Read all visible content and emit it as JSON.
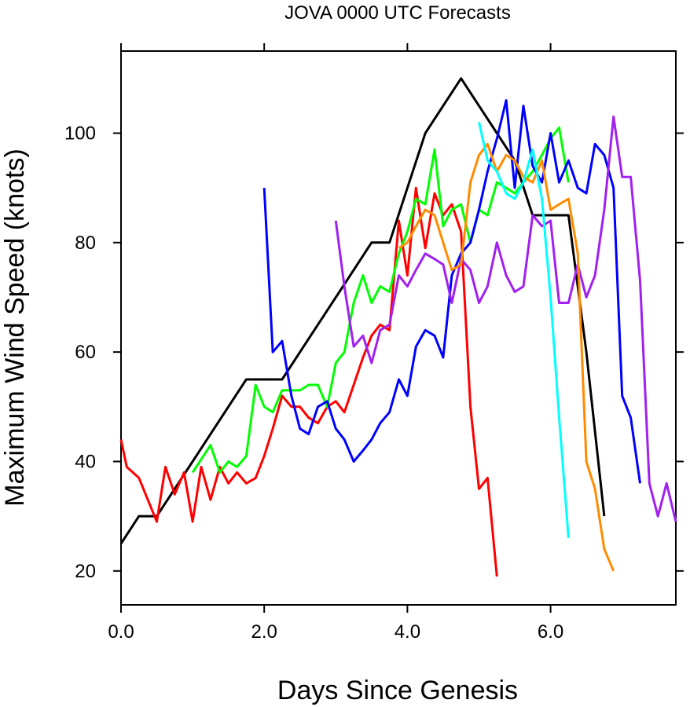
{
  "chart_data": {
    "type": "line",
    "title": "JOVA 0000 UTC Forecasts",
    "xlabel": "Days Since Genesis",
    "ylabel": "Maximum Wind Speed (knots)",
    "xlim": [
      0,
      7.75
    ],
    "ylim": [
      13.8,
      115
    ],
    "x_ticks": [
      0,
      2,
      4,
      6
    ],
    "x_tick_labels": [
      "0.0",
      "2.0",
      "4.0",
      "6.0"
    ],
    "y_ticks": [
      20,
      40,
      60,
      80,
      100
    ],
    "y_tick_labels": [
      "20",
      "40",
      "60",
      "80",
      "100"
    ],
    "grid": false,
    "legend": "none",
    "series": [
      {
        "color": "#000000",
        "points": [
          [
            0,
            25
          ],
          [
            0.25,
            30
          ],
          [
            0.5,
            30
          ],
          [
            0.75,
            35
          ],
          [
            1,
            40
          ],
          [
            1.25,
            45
          ],
          [
            1.5,
            50
          ],
          [
            1.75,
            55
          ],
          [
            2,
            55
          ],
          [
            2.25,
            55
          ],
          [
            2.5,
            60
          ],
          [
            2.75,
            65
          ],
          [
            3,
            70
          ],
          [
            3.25,
            75
          ],
          [
            3.5,
            80
          ],
          [
            3.75,
            80
          ],
          [
            4,
            90
          ],
          [
            4.25,
            100
          ],
          [
            4.5,
            105
          ],
          [
            4.75,
            110
          ],
          [
            5,
            105
          ],
          [
            5.25,
            100
          ],
          [
            5.5,
            95
          ],
          [
            5.75,
            85
          ],
          [
            6,
            85
          ],
          [
            6.25,
            85
          ],
          [
            6.5,
            60
          ],
          [
            6.75,
            30
          ]
        ]
      },
      {
        "color": "#ff0000",
        "points": [
          [
            0,
            44
          ],
          [
            0.08,
            39
          ],
          [
            0.25,
            37
          ],
          [
            0.5,
            29
          ],
          [
            0.62,
            39
          ],
          [
            0.75,
            34
          ],
          [
            0.88,
            38
          ],
          [
            1,
            29
          ],
          [
            1.12,
            39
          ],
          [
            1.25,
            33
          ],
          [
            1.38,
            39
          ],
          [
            1.5,
            36
          ],
          [
            1.62,
            38
          ],
          [
            1.75,
            36
          ],
          [
            1.88,
            37
          ],
          [
            2,
            41
          ],
          [
            2.12,
            46
          ],
          [
            2.25,
            52
          ],
          [
            2.38,
            50
          ],
          [
            2.5,
            50
          ],
          [
            2.62,
            48
          ],
          [
            2.75,
            47
          ],
          [
            2.88,
            50
          ],
          [
            3,
            51
          ],
          [
            3.12,
            49
          ],
          [
            3.25,
            54
          ],
          [
            3.38,
            59
          ],
          [
            3.5,
            63
          ],
          [
            3.62,
            65
          ],
          [
            3.75,
            64
          ],
          [
            3.88,
            84
          ],
          [
            4,
            74
          ],
          [
            4.12,
            90
          ],
          [
            4.25,
            79
          ],
          [
            4.38,
            89
          ],
          [
            4.5,
            85
          ],
          [
            4.62,
            87
          ],
          [
            4.75,
            82
          ],
          [
            4.88,
            50
          ],
          [
            5,
            35
          ],
          [
            5.12,
            37
          ],
          [
            5.25,
            19
          ]
        ]
      },
      {
        "color": "#00ff00",
        "points": [
          [
            1,
            38
          ],
          [
            1.25,
            43
          ],
          [
            1.38,
            38
          ],
          [
            1.5,
            40
          ],
          [
            1.62,
            39
          ],
          [
            1.75,
            41
          ],
          [
            1.88,
            54
          ],
          [
            2,
            50
          ],
          [
            2.12,
            49
          ],
          [
            2.25,
            53
          ],
          [
            2.38,
            53
          ],
          [
            2.5,
            53
          ],
          [
            2.62,
            54
          ],
          [
            2.75,
            54
          ],
          [
            2.88,
            50
          ],
          [
            3,
            58
          ],
          [
            3.12,
            60
          ],
          [
            3.25,
            69
          ],
          [
            3.38,
            74
          ],
          [
            3.5,
            69
          ],
          [
            3.62,
            72
          ],
          [
            3.75,
            71
          ],
          [
            3.88,
            78
          ],
          [
            4,
            82
          ],
          [
            4.12,
            88
          ],
          [
            4.25,
            87
          ],
          [
            4.38,
            97
          ],
          [
            4.5,
            83
          ],
          [
            4.62,
            86
          ],
          [
            4.75,
            87
          ],
          [
            4.88,
            80
          ],
          [
            5,
            86
          ],
          [
            5.12,
            85
          ],
          [
            5.25,
            91
          ],
          [
            5.38,
            90
          ],
          [
            5.5,
            89
          ],
          [
            5.62,
            91
          ],
          [
            5.75,
            93
          ],
          [
            5.88,
            96
          ],
          [
            6,
            99
          ],
          [
            6.12,
            101
          ],
          [
            6.25,
            91
          ]
        ]
      },
      {
        "color": "#0000ff",
        "points": [
          [
            2,
            90
          ],
          [
            2.12,
            60
          ],
          [
            2.25,
            62
          ],
          [
            2.38,
            52
          ],
          [
            2.5,
            46
          ],
          [
            2.62,
            45
          ],
          [
            2.75,
            50
          ],
          [
            2.88,
            51
          ],
          [
            3,
            46
          ],
          [
            3.12,
            44
          ],
          [
            3.25,
            40
          ],
          [
            3.38,
            42
          ],
          [
            3.5,
            44
          ],
          [
            3.62,
            47
          ],
          [
            3.75,
            49
          ],
          [
            3.88,
            55
          ],
          [
            4,
            52
          ],
          [
            4.12,
            61
          ],
          [
            4.25,
            64
          ],
          [
            4.38,
            63
          ],
          [
            4.5,
            59
          ],
          [
            4.62,
            74
          ],
          [
            4.75,
            78
          ],
          [
            4.88,
            80
          ],
          [
            5,
            86
          ],
          [
            5.12,
            93
          ],
          [
            5.25,
            99
          ],
          [
            5.38,
            106
          ],
          [
            5.5,
            90
          ],
          [
            5.62,
            105
          ],
          [
            5.75,
            94
          ],
          [
            5.88,
            91
          ],
          [
            6,
            100
          ],
          [
            6.12,
            91
          ],
          [
            6.25,
            95
          ],
          [
            6.38,
            90
          ],
          [
            6.5,
            89
          ],
          [
            6.62,
            98
          ],
          [
            6.75,
            96
          ],
          [
            6.88,
            90
          ],
          [
            7,
            52
          ],
          [
            7.12,
            48
          ],
          [
            7.25,
            36
          ]
        ]
      },
      {
        "color": "#a020f0",
        "points": [
          [
            3,
            84
          ],
          [
            3.12,
            72
          ],
          [
            3.25,
            61
          ],
          [
            3.38,
            63
          ],
          [
            3.5,
            58
          ],
          [
            3.62,
            64
          ],
          [
            3.75,
            65
          ],
          [
            3.88,
            74
          ],
          [
            4,
            72
          ],
          [
            4.12,
            75
          ],
          [
            4.25,
            78
          ],
          [
            4.38,
            77
          ],
          [
            4.5,
            76
          ],
          [
            4.62,
            69
          ],
          [
            4.75,
            77
          ],
          [
            4.88,
            75
          ],
          [
            5,
            69
          ],
          [
            5.12,
            72
          ],
          [
            5.25,
            80
          ],
          [
            5.38,
            74
          ],
          [
            5.5,
            71
          ],
          [
            5.62,
            72
          ],
          [
            5.75,
            85
          ],
          [
            5.88,
            83
          ],
          [
            6,
            84
          ],
          [
            6.12,
            69
          ],
          [
            6.25,
            69
          ],
          [
            6.38,
            76
          ],
          [
            6.5,
            70
          ],
          [
            6.62,
            74
          ],
          [
            6.75,
            86
          ],
          [
            6.88,
            103
          ],
          [
            7,
            92
          ],
          [
            7.12,
            92
          ],
          [
            7.25,
            73
          ],
          [
            7.38,
            36
          ],
          [
            7.5,
            30
          ],
          [
            7.62,
            36
          ],
          [
            7.75,
            29
          ]
        ]
      },
      {
        "color": "#ff8c00",
        "points": [
          [
            3.88,
            79
          ],
          [
            4,
            80
          ],
          [
            4.12,
            83
          ],
          [
            4.25,
            86
          ],
          [
            4.38,
            85
          ],
          [
            4.5,
            80
          ],
          [
            4.62,
            75
          ],
          [
            4.75,
            76
          ],
          [
            4.88,
            91
          ],
          [
            5,
            96
          ],
          [
            5.12,
            98
          ],
          [
            5.25,
            93
          ],
          [
            5.38,
            96
          ],
          [
            5.5,
            95
          ],
          [
            5.62,
            92
          ],
          [
            5.75,
            91
          ],
          [
            5.88,
            95
          ],
          [
            6,
            86
          ],
          [
            6.12,
            87
          ],
          [
            6.25,
            88
          ],
          [
            6.38,
            78
          ],
          [
            6.5,
            40
          ],
          [
            6.62,
            35
          ],
          [
            6.75,
            24
          ],
          [
            6.88,
            20
          ]
        ]
      },
      {
        "color": "#00ffff",
        "points": [
          [
            5,
            102
          ],
          [
            5.12,
            95
          ],
          [
            5.25,
            93
          ],
          [
            5.38,
            89
          ],
          [
            5.5,
            88
          ],
          [
            5.62,
            91
          ],
          [
            5.75,
            97
          ],
          [
            5.88,
            88
          ],
          [
            6,
            70
          ],
          [
            6.12,
            48
          ],
          [
            6.25,
            26
          ]
        ]
      }
    ]
  }
}
